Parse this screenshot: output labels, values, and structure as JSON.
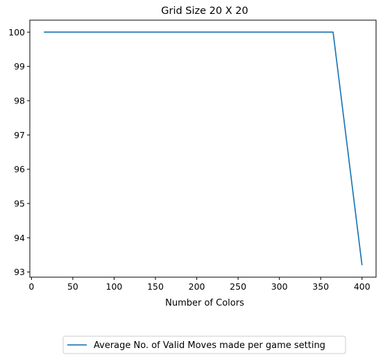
{
  "chart_data": {
    "type": "line",
    "title": "Grid Size 20 X 20",
    "xlabel": "Number of Colors",
    "ylabel": "",
    "xlim": [
      -2,
      417
    ],
    "ylim": [
      92.85,
      100.35
    ],
    "xticks": [
      0,
      50,
      100,
      150,
      200,
      250,
      300,
      350,
      400
    ],
    "yticks": [
      93,
      94,
      95,
      96,
      97,
      98,
      99,
      100
    ],
    "grid": false,
    "legend_position": "bottom-center, below plot",
    "series": [
      {
        "name": "Average No. of Valid Moves made per game setting",
        "color": "#1f77b4",
        "x": [
          15,
          365,
          400
        ],
        "y": [
          100,
          100,
          93.2
        ]
      }
    ]
  }
}
